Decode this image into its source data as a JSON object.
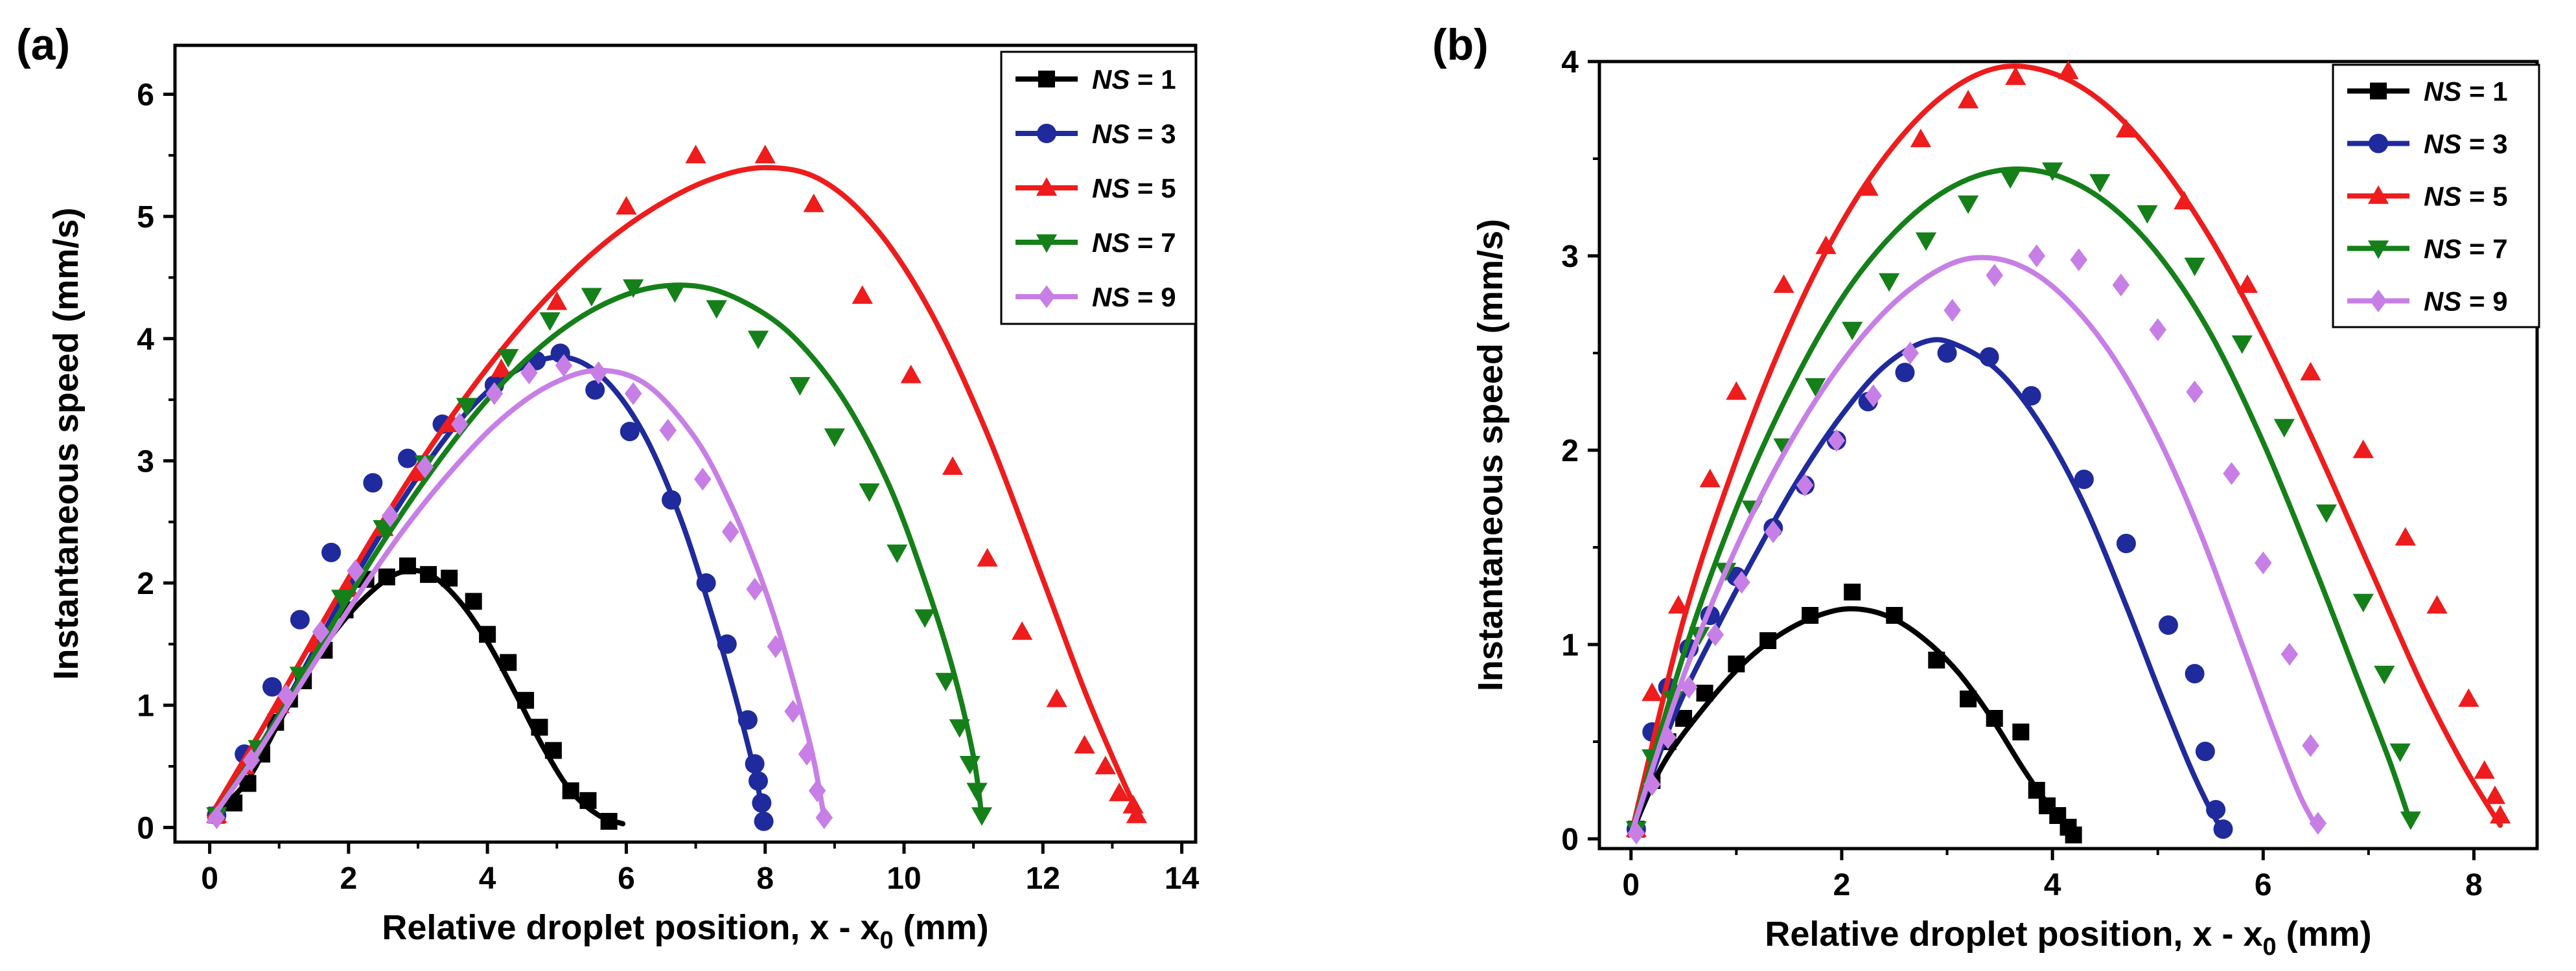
{
  "colors": {
    "ns1": "#000000",
    "ns3": "#1f2a9c",
    "ns5": "#ee1c1c",
    "ns7": "#158019",
    "ns9": "#c77fe6"
  },
  "chart_data": [
    {
      "type": "scatter",
      "panel_label": "(a)",
      "xlabel": "Relative droplet position, x - x",
      "xlabel_sub": "0",
      "xlabel_unit": " (mm)",
      "ylabel": "Instantaneous speed (mm/s)",
      "xlim": [
        -0.5,
        14.2
      ],
      "ylim": [
        -0.12,
        6.4
      ],
      "xticks": [
        0,
        2,
        4,
        6,
        8,
        10,
        12,
        14
      ],
      "xtick_labels": [
        "0",
        "2",
        "4",
        "6",
        "8",
        "10",
        "12",
        "14"
      ],
      "yticks": [
        0,
        1,
        2,
        3,
        4,
        5,
        6
      ],
      "ytick_labels": [
        "0",
        "1",
        "2",
        "3",
        "4",
        "5",
        "6"
      ],
      "legend_position": "top-right",
      "series": [
        {
          "name": "NS = 1",
          "name_italic": "NS",
          "name_rest": " = 1",
          "marker": "square",
          "color_key": "ns1",
          "x": [
            0.1,
            0.35,
            0.55,
            0.75,
            0.95,
            1.15,
            1.35,
            1.65,
            1.95,
            2.25,
            2.55,
            2.85,
            3.15,
            3.45,
            3.8,
            4.0,
            4.3,
            4.55,
            4.75,
            4.95,
            5.2,
            5.45,
            5.75
          ],
          "y": [
            0.1,
            0.2,
            0.36,
            0.6,
            0.86,
            1.05,
            1.2,
            1.45,
            1.78,
            2.03,
            2.05,
            2.14,
            2.07,
            2.04,
            1.85,
            1.58,
            1.35,
            1.04,
            0.82,
            0.63,
            0.3,
            0.22,
            0.05
          ],
          "fit_x": [
            0,
            0.5,
            1,
            1.5,
            2,
            2.5,
            2.85,
            3.2,
            3.6,
            4,
            4.4,
            4.8,
            5.2,
            5.6,
            5.95
          ],
          "fit_y": [
            0.1,
            0.35,
            0.86,
            1.36,
            1.74,
            2.01,
            2.1,
            2.06,
            1.85,
            1.52,
            1.1,
            0.66,
            0.3,
            0.1,
            0.03
          ]
        },
        {
          "name": "NS = 3",
          "name_italic": "NS",
          "name_rest": " = 3",
          "marker": "circle",
          "color_key": "ns3",
          "x": [
            0.1,
            0.5,
            0.9,
            1.3,
            1.75,
            2.35,
            2.85,
            3.35,
            4.1,
            4.7,
            5.05,
            5.55,
            6.05,
            6.65,
            7.15,
            7.45,
            7.75,
            7.85,
            7.9,
            7.95,
            7.98
          ],
          "y": [
            0.1,
            0.6,
            1.15,
            1.7,
            2.25,
            2.82,
            3.02,
            3.3,
            3.62,
            3.82,
            3.88,
            3.58,
            3.24,
            2.68,
            2.0,
            1.5,
            0.88,
            0.52,
            0.38,
            0.2,
            0.05
          ],
          "fit_x": [
            0,
            0.6,
            1.2,
            1.8,
            2.4,
            3,
            3.6,
            4.2,
            4.8,
            5.3,
            5.8,
            6.3,
            6.8,
            7.2,
            7.5,
            7.75,
            7.9,
            7.98
          ],
          "fit_y": [
            0.05,
            0.55,
            1.13,
            1.76,
            2.34,
            2.87,
            3.33,
            3.66,
            3.83,
            3.82,
            3.6,
            3.17,
            2.5,
            1.8,
            1.22,
            0.68,
            0.32,
            0.05
          ]
        },
        {
          "name": "NS = 5",
          "name_italic": "NS",
          "name_rest": " = 5",
          "marker": "triangle-up",
          "color_key": "ns5",
          "x": [
            0.1,
            0.5,
            1.0,
            1.5,
            2.0,
            2.5,
            3.0,
            3.5,
            4.2,
            5.0,
            6.0,
            7.0,
            8.0,
            8.7,
            9.4,
            10.1,
            10.7,
            11.2,
            11.7,
            12.2,
            12.6,
            12.9,
            13.1,
            13.3,
            13.35
          ],
          "y": [
            0.1,
            0.5,
            1.0,
            1.5,
            1.95,
            2.45,
            2.9,
            3.3,
            3.75,
            4.3,
            5.08,
            5.5,
            5.5,
            5.1,
            4.35,
            3.7,
            2.95,
            2.2,
            1.6,
            1.05,
            0.67,
            0.5,
            0.28,
            0.18,
            0.1
          ],
          "fit_x": [
            0,
            0.8,
            1.6,
            2.4,
            3.2,
            4,
            4.8,
            5.6,
            6.4,
            7.2,
            8,
            8.8,
            9.6,
            10.4,
            11.2,
            12,
            12.6,
            13.1,
            13.4
          ],
          "fit_y": [
            0.08,
            0.85,
            1.65,
            2.42,
            3.13,
            3.76,
            4.3,
            4.74,
            5.07,
            5.3,
            5.4,
            5.3,
            4.9,
            4.2,
            3.22,
            2.03,
            1.12,
            0.45,
            0.08
          ]
        },
        {
          "name": "NS = 7",
          "name_italic": "NS",
          "name_rest": " = 7",
          "marker": "triangle-down",
          "color_key": "ns7",
          "x": [
            0.1,
            0.7,
            1.3,
            1.9,
            2.5,
            3.1,
            3.7,
            4.3,
            4.9,
            5.5,
            6.1,
            6.7,
            7.3,
            7.9,
            8.5,
            9.0,
            9.5,
            9.9,
            10.3,
            10.6,
            10.8,
            10.95,
            11.05,
            11.12
          ],
          "y": [
            0.1,
            0.65,
            1.25,
            1.88,
            2.45,
            2.98,
            3.45,
            3.85,
            4.15,
            4.35,
            4.42,
            4.38,
            4.25,
            4.0,
            3.62,
            3.2,
            2.75,
            2.25,
            1.72,
            1.2,
            0.82,
            0.52,
            0.3,
            0.1
          ],
          "fit_x": [
            0,
            0.8,
            1.6,
            2.4,
            3.2,
            4,
            4.8,
            5.6,
            6.4,
            7.2,
            8,
            8.6,
            9.2,
            9.8,
            10.3,
            10.7,
            11,
            11.12
          ],
          "fit_y": [
            0.05,
            0.73,
            1.5,
            2.25,
            2.92,
            3.5,
            3.95,
            4.26,
            4.42,
            4.41,
            4.2,
            3.9,
            3.44,
            2.78,
            2.02,
            1.3,
            0.58,
            0.08
          ]
        },
        {
          "name": "NS = 9",
          "name_italic": "NS",
          "name_rest": " = 9",
          "marker": "diamond",
          "color_key": "ns9",
          "x": [
            0.1,
            0.6,
            1.1,
            1.6,
            2.1,
            2.6,
            3.1,
            3.6,
            4.1,
            4.6,
            5.1,
            5.6,
            6.1,
            6.6,
            7.1,
            7.5,
            7.85,
            8.15,
            8.4,
            8.6,
            8.75,
            8.85
          ],
          "y": [
            0.08,
            0.55,
            1.08,
            1.6,
            2.1,
            2.55,
            2.95,
            3.3,
            3.55,
            3.72,
            3.78,
            3.72,
            3.55,
            3.25,
            2.85,
            2.42,
            1.95,
            1.48,
            0.95,
            0.6,
            0.3,
            0.08
          ],
          "fit_x": [
            0,
            0.7,
            1.4,
            2.1,
            2.8,
            3.5,
            4.2,
            4.9,
            5.6,
            6.3,
            7,
            7.5,
            7.9,
            8.2,
            8.5,
            8.7,
            8.85
          ],
          "fit_y": [
            0.05,
            0.62,
            1.25,
            1.87,
            2.44,
            2.93,
            3.34,
            3.62,
            3.74,
            3.62,
            3.18,
            2.65,
            2.1,
            1.6,
            1.0,
            0.55,
            0.08
          ]
        }
      ]
    },
    {
      "type": "scatter",
      "panel_label": "(b)",
      "xlabel": "Relative droplet position, x - x",
      "xlabel_sub": "0",
      "xlabel_unit": " (mm)",
      "ylabel": "Instantaneous speed (mm/s)",
      "xlim": [
        -0.3,
        8.6
      ],
      "ylim": [
        -0.05,
        4.0
      ],
      "xticks": [
        0,
        2,
        4,
        6,
        8
      ],
      "xtick_labels": [
        "0",
        "2",
        "4",
        "6",
        "8"
      ],
      "yticks": [
        0,
        1,
        2,
        3,
        4
      ],
      "ytick_labels": [
        "0",
        "1",
        "2",
        "3",
        "4"
      ],
      "legend_position": "top-right",
      "series": [
        {
          "name": "NS = 1",
          "name_italic": "NS",
          "name_rest": " = 1",
          "marker": "square",
          "color_key": "ns1",
          "x": [
            0.05,
            0.2,
            0.35,
            0.5,
            0.7,
            1.0,
            1.3,
            1.7,
            2.1,
            2.5,
            2.9,
            3.2,
            3.45,
            3.7,
            3.85,
            3.95,
            4.05,
            4.15,
            4.2
          ],
          "y": [
            0.05,
            0.3,
            0.5,
            0.62,
            0.75,
            0.9,
            1.02,
            1.15,
            1.27,
            1.15,
            0.92,
            0.72,
            0.62,
            0.55,
            0.25,
            0.17,
            0.12,
            0.06,
            0.02
          ],
          "fit_x": [
            0,
            0.3,
            0.7,
            1.1,
            1.5,
            1.9,
            2.2,
            2.5,
            2.8,
            3.1,
            3.4,
            3.7,
            3.9,
            4.1,
            4.2
          ],
          "fit_y": [
            0.02,
            0.38,
            0.68,
            0.92,
            1.08,
            1.17,
            1.18,
            1.13,
            1.02,
            0.86,
            0.64,
            0.38,
            0.22,
            0.08,
            0.02
          ]
        },
        {
          "name": "NS = 3",
          "name_italic": "NS",
          "name_rest": " = 3",
          "marker": "circle",
          "color_key": "ns3",
          "x": [
            0.05,
            0.2,
            0.35,
            0.55,
            0.75,
            1.0,
            1.35,
            1.65,
            1.95,
            2.25,
            2.6,
            3.0,
            3.4,
            3.8,
            4.3,
            4.7,
            5.1,
            5.35,
            5.45,
            5.55,
            5.62
          ],
          "y": [
            0.05,
            0.55,
            0.78,
            0.98,
            1.15,
            1.35,
            1.6,
            1.82,
            2.05,
            2.25,
            2.4,
            2.5,
            2.48,
            2.28,
            1.85,
            1.52,
            1.1,
            0.85,
            0.45,
            0.15,
            0.05
          ],
          "fit_x": [
            0,
            0.4,
            0.8,
            1.2,
            1.6,
            2.0,
            2.4,
            2.8,
            3.1,
            3.5,
            3.9,
            4.3,
            4.7,
            5.0,
            5.3,
            5.5,
            5.62
          ],
          "fit_y": [
            0.02,
            0.62,
            1.07,
            1.48,
            1.86,
            2.18,
            2.43,
            2.56,
            2.54,
            2.4,
            2.12,
            1.72,
            1.2,
            0.78,
            0.38,
            0.15,
            0.04
          ]
        },
        {
          "name": "NS = 5",
          "name_italic": "NS",
          "name_rest": " = 5",
          "marker": "triangle-up",
          "color_key": "ns5",
          "x": [
            0.05,
            0.2,
            0.45,
            0.75,
            1.0,
            1.45,
            1.85,
            2.25,
            2.75,
            3.2,
            3.65,
            4.15,
            4.7,
            5.25,
            5.85,
            6.45,
            6.95,
            7.35,
            7.65,
            7.95,
            8.1,
            8.2,
            8.25
          ],
          "y": [
            0.05,
            0.75,
            1.2,
            1.85,
            2.3,
            2.85,
            3.05,
            3.35,
            3.6,
            3.8,
            3.92,
            3.95,
            3.65,
            3.28,
            2.85,
            2.4,
            2.0,
            1.55,
            1.2,
            0.72,
            0.35,
            0.22,
            0.12
          ],
          "fit_x": [
            0,
            0.5,
            1.0,
            1.5,
            2.0,
            2.5,
            3.0,
            3.5,
            4.0,
            4.5,
            5.0,
            5.5,
            6.0,
            6.5,
            7.0,
            7.5,
            7.9,
            8.25
          ],
          "fit_y": [
            0.02,
            1.13,
            1.95,
            2.63,
            3.17,
            3.57,
            3.84,
            3.97,
            3.94,
            3.78,
            3.49,
            3.09,
            2.59,
            2.02,
            1.41,
            0.8,
            0.38,
            0.07
          ]
        },
        {
          "name": "NS = 7",
          "name_italic": "NS",
          "name_rest": " = 7",
          "marker": "triangle-down",
          "color_key": "ns7",
          "x": [
            0.05,
            0.2,
            0.4,
            0.65,
            0.9,
            1.15,
            1.45,
            1.75,
            2.1,
            2.45,
            2.8,
            3.2,
            3.6,
            4.0,
            4.45,
            4.9,
            5.35,
            5.8,
            6.2,
            6.6,
            6.95,
            7.15,
            7.3,
            7.4
          ],
          "y": [
            0.05,
            0.42,
            0.72,
            1.05,
            1.38,
            1.7,
            2.02,
            2.33,
            2.62,
            2.87,
            3.08,
            3.27,
            3.4,
            3.44,
            3.38,
            3.22,
            2.95,
            2.55,
            2.12,
            1.68,
            1.22,
            0.85,
            0.45,
            0.1
          ],
          "fit_x": [
            0,
            0.5,
            1.0,
            1.5,
            2.0,
            2.5,
            3.0,
            3.5,
            4.0,
            4.5,
            5.0,
            5.5,
            6.0,
            6.5,
            6.9,
            7.2,
            7.4
          ],
          "fit_y": [
            0.02,
            0.95,
            1.7,
            2.3,
            2.78,
            3.12,
            3.34,
            3.44,
            3.42,
            3.28,
            3.01,
            2.6,
            2.04,
            1.38,
            0.82,
            0.4,
            0.08
          ]
        },
        {
          "name": "NS = 9",
          "name_italic": "NS",
          "name_rest": " = 9",
          "marker": "diamond",
          "color_key": "ns9",
          "x": [
            0.05,
            0.2,
            0.35,
            0.55,
            0.8,
            1.05,
            1.35,
            1.65,
            1.95,
            2.3,
            2.65,
            3.05,
            3.45,
            3.85,
            4.25,
            4.65,
            5.0,
            5.35,
            5.7,
            6.0,
            6.25,
            6.45,
            6.52
          ],
          "y": [
            0.03,
            0.28,
            0.52,
            0.78,
            1.05,
            1.32,
            1.58,
            1.82,
            2.05,
            2.28,
            2.5,
            2.72,
            2.9,
            3.0,
            2.98,
            2.85,
            2.62,
            2.3,
            1.88,
            1.42,
            0.95,
            0.48,
            0.08
          ],
          "fit_x": [
            0,
            0.5,
            1.0,
            1.5,
            2.0,
            2.5,
            3.0,
            3.4,
            3.8,
            4.2,
            4.6,
            5.0,
            5.4,
            5.8,
            6.1,
            6.35,
            6.52
          ],
          "fit_y": [
            0.02,
            0.84,
            1.5,
            2.03,
            2.45,
            2.76,
            2.95,
            2.99,
            2.92,
            2.74,
            2.46,
            2.07,
            1.58,
            1.0,
            0.56,
            0.22,
            0.05
          ]
        }
      ]
    }
  ]
}
